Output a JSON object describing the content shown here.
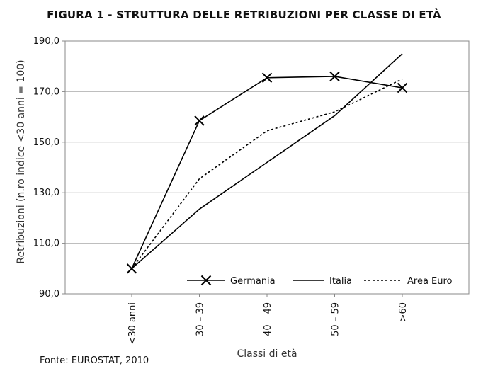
{
  "title": "FIGURA 1 - STRUTTURA DELLE RETRIBUZIONI PER CLASSE DI ETÀ",
  "source": "Fonte: EUROSTAT, 2010",
  "chart_data": {
    "type": "line",
    "title": "FIGURA 1 - STRUTTURA DELLE RETRIBUZIONI PER CLASSE DI ETÀ",
    "xlabel": "Classi di età",
    "ylabel": "Retribuzioni  (n.ro indice <30 anni = 100)",
    "categories": [
      "<30 anni",
      "30 – 39",
      "40 – 49",
      "50 – 59",
      ">60"
    ],
    "yticks": [
      "90,0",
      "110,0",
      "130,0",
      "150,0",
      "170,0",
      "190,0"
    ],
    "ytick_values": [
      90,
      110,
      130,
      150,
      170,
      190
    ],
    "ylim": [
      90,
      190
    ],
    "grid": true,
    "legend_position": "bottom-right",
    "series": [
      {
        "name": "Germania",
        "values": [
          100,
          158.5,
          175.5,
          176,
          171.5
        ],
        "style": "solid",
        "marker": "x",
        "color": "#000000"
      },
      {
        "name": "Italia",
        "values": [
          100,
          123.5,
          142,
          160.5,
          185
        ],
        "style": "solid",
        "marker": "none",
        "color": "#000000"
      },
      {
        "name": "Area Euro",
        "values": [
          100,
          135.5,
          154.5,
          162,
          175
        ],
        "style": "dashed",
        "marker": "none",
        "color": "#000000"
      }
    ]
  }
}
